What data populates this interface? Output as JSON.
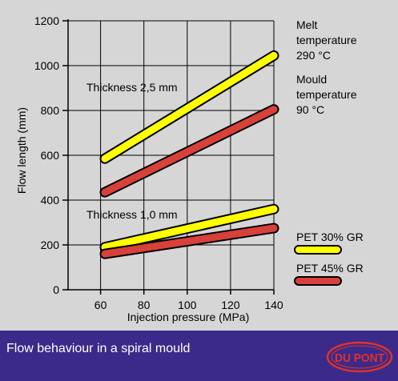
{
  "caption": "Flow behaviour in a spiral mould",
  "logo_text": "DU PONT",
  "colors": {
    "background": "#d6d6d6",
    "caption_bar": "#3b2a8a",
    "logo": "#e0312b"
  },
  "chart_data": {
    "type": "line",
    "xlabel": "Injection pressure (MPa)",
    "ylabel": "Flow length (mm)",
    "xlim": [
      45,
      140
    ],
    "ylim": [
      0,
      1200
    ],
    "xticks": [
      60,
      80,
      100,
      120,
      140
    ],
    "yticks": [
      0,
      200,
      400,
      600,
      800,
      1000,
      1200
    ],
    "grid": true,
    "annotations": {
      "melt_label": [
        "Melt",
        "temperature",
        "290 °C"
      ],
      "mould_label": [
        "Mould",
        "temperature",
        "90 °C"
      ],
      "thickness_a": "Thickness 2,5 mm",
      "thickness_b": "Thickness 1,0 mm"
    },
    "legend": [
      {
        "name": "PET 30% GR",
        "color": "#ffff00"
      },
      {
        "name": "PET 45% GR",
        "color": "#d8403a"
      }
    ],
    "series": [
      {
        "name": "PET 30% GR",
        "group": "Thickness 2,5 mm",
        "color": "#ffff00",
        "x": [
          62,
          140
        ],
        "y": [
          585,
          1045
        ]
      },
      {
        "name": "PET 45% GR",
        "group": "Thickness 2,5 mm",
        "color": "#d8403a",
        "x": [
          62,
          140
        ],
        "y": [
          435,
          805
        ]
      },
      {
        "name": "PET 30% GR",
        "group": "Thickness 1,0 mm",
        "color": "#ffff00",
        "x": [
          62,
          140
        ],
        "y": [
          190,
          360
        ]
      },
      {
        "name": "PET 45% GR",
        "group": "Thickness 1,0 mm",
        "color": "#d8403a",
        "x": [
          62,
          140
        ],
        "y": [
          160,
          275
        ]
      }
    ]
  }
}
